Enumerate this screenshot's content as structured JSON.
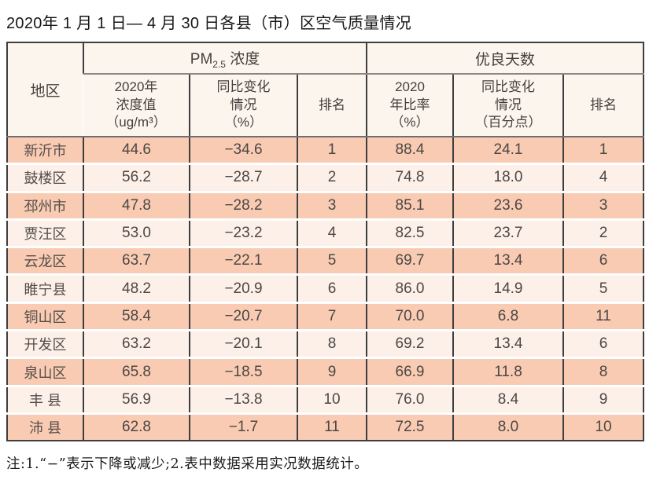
{
  "colors": {
    "stripe_row_bg": "#f9cbb3",
    "light_row_bg": "#fdf0e9",
    "header_bg": "#fcf5ee",
    "border_dark": "#3e3e3e",
    "header_separator_gray": "#878787",
    "text_dark": "#4c4745"
  },
  "chart_data": {
    "type": "table",
    "title": "2020年 1 月 1 日— 4 月 30 日各县（市）区空气质量情况",
    "note": "注:1.“−”表示下降或减少;2.表中数据采用实况数据统计。",
    "column_groups": {
      "pm_prefix": "PM",
      "pm_sub": "2.5",
      "pm_suffix": " 浓度",
      "days": "优良天数"
    },
    "headers": {
      "region": "地区",
      "pm_value": "2020年\n浓度值\n（ug/m³）",
      "pm_change": "同比变化\n情况\n（%）",
      "pm_rank": "排名",
      "days_ratio": "2020\n年比率\n（%）",
      "days_change": "同比变化\n情况\n（百分点）",
      "days_rank": "排名"
    },
    "rows": [
      {
        "region": "新沂市",
        "pm_value": "44.6",
        "pm_change": "−34.6",
        "pm_rank": "1",
        "days_ratio": "88.4",
        "days_change": "24.1",
        "days_rank": "1"
      },
      {
        "region": "鼓楼区",
        "pm_value": "56.2",
        "pm_change": "−28.7",
        "pm_rank": "2",
        "days_ratio": "74.8",
        "days_change": "18.0",
        "days_rank": "4"
      },
      {
        "region": "邳州市",
        "pm_value": "47.8",
        "pm_change": "−28.2",
        "pm_rank": "3",
        "days_ratio": "85.1",
        "days_change": "23.6",
        "days_rank": "3"
      },
      {
        "region": "贾汪区",
        "pm_value": "53.0",
        "pm_change": "−23.2",
        "pm_rank": "4",
        "days_ratio": "82.5",
        "days_change": "23.7",
        "days_rank": "2"
      },
      {
        "region": "云龙区",
        "pm_value": "63.7",
        "pm_change": "−22.1",
        "pm_rank": "5",
        "days_ratio": "69.7",
        "days_change": "13.4",
        "days_rank": "6"
      },
      {
        "region": "睢宁县",
        "pm_value": "48.2",
        "pm_change": "−20.9",
        "pm_rank": "6",
        "days_ratio": "86.0",
        "days_change": "14.9",
        "days_rank": "5"
      },
      {
        "region": "铜山区",
        "pm_value": "58.4",
        "pm_change": "−20.7",
        "pm_rank": "7",
        "days_ratio": "70.0",
        "days_change": "6.8",
        "days_rank": "11"
      },
      {
        "region": "开发区",
        "pm_value": "63.2",
        "pm_change": "−20.1",
        "pm_rank": "8",
        "days_ratio": "69.2",
        "days_change": "13.4",
        "days_rank": "6"
      },
      {
        "region": "泉山区",
        "pm_value": "65.8",
        "pm_change": "−18.5",
        "pm_rank": "9",
        "days_ratio": "66.9",
        "days_change": "11.8",
        "days_rank": "8"
      },
      {
        "region": "丰 县",
        "pm_value": "56.9",
        "pm_change": "−13.8",
        "pm_rank": "10",
        "days_ratio": "76.0",
        "days_change": "8.4",
        "days_rank": "9"
      },
      {
        "region": "沛 县",
        "pm_value": "62.8",
        "pm_change": "−1.7",
        "pm_rank": "11",
        "days_ratio": "72.5",
        "days_change": "8.0",
        "days_rank": "10"
      }
    ]
  }
}
